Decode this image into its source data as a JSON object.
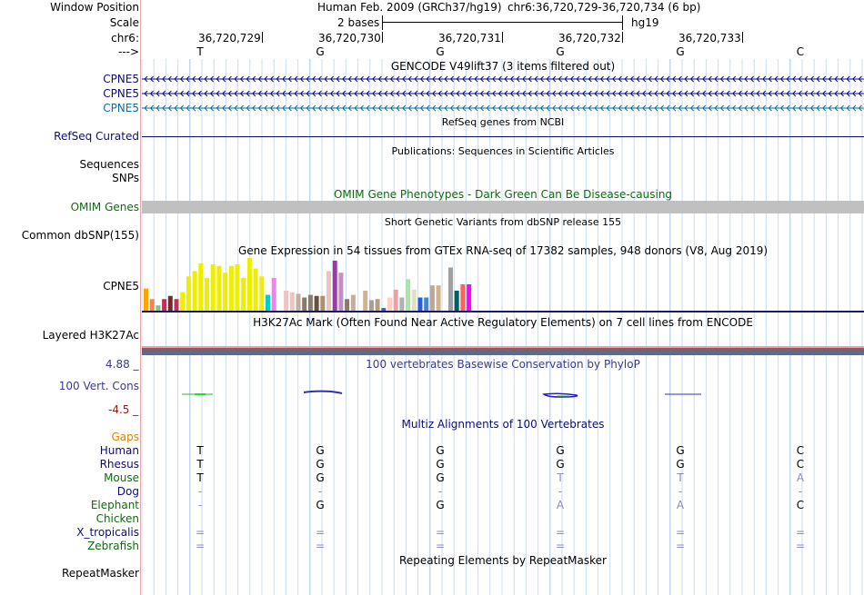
{
  "header": {
    "window_position_label": "Window Position",
    "assembly": "Human Feb. 2009 (GRCh37/hg19)",
    "position": "chr6:36,720,729-36,720,734 (6 bp)",
    "scale_label": "Scale",
    "scale_value": "2 bases",
    "scale_db": "hg19",
    "chrom_label": "chr6:",
    "strand_label": "--->"
  },
  "ruler": [
    "36,720,729",
    "36,720,730",
    "36,720,731",
    "36,720,732",
    "36,720,733"
  ],
  "sequence": [
    "T",
    "G",
    "G",
    "G",
    "G",
    "C"
  ],
  "gencode": {
    "title": "GENCODE V49lift37 (3 items filtered out)",
    "genes": [
      {
        "name": "CPNE5",
        "color": "#0c0c78"
      },
      {
        "name": "CPNE5",
        "color": "#0c0c78"
      },
      {
        "name": "CPNE5",
        "color": "#0c6e9e"
      }
    ]
  },
  "refseq": {
    "title": "RefSeq genes from NCBI",
    "label": "RefSeq Curated",
    "color": "#0c0c78"
  },
  "publications": {
    "title": "Publications: Sequences in Scientific Articles",
    "labels": [
      "Sequences",
      "SNPs"
    ]
  },
  "omim": {
    "title": "OMIM Gene Phenotypes - Dark Green Can Be Disease-causing",
    "label": "OMIM Genes",
    "color": "#0a6e0a"
  },
  "dbsnp": {
    "title": "Short Genetic Variants from dbSNP release 155",
    "label": "Common dbSNP(155)"
  },
  "gtex": {
    "title": "Gene Expression in 54 tissues from GTEx RNA-seq of 17382 samples, 948 donors (V8, Aug 2019)",
    "label": "CPNE5",
    "bars": [
      {
        "v": 0.42,
        "c": "#ffa500"
      },
      {
        "v": 0.22,
        "c": "#ff7f50"
      },
      {
        "v": 0.1,
        "c": "#80c080"
      },
      {
        "v": 0.22,
        "c": "#c0305c"
      },
      {
        "v": 0.28,
        "c": "#6c2c2c"
      },
      {
        "v": 0.22,
        "c": "#c0305c"
      },
      {
        "v": 0.35,
        "c": "#eeee00"
      },
      {
        "v": 0.65,
        "c": "#eeee00"
      },
      {
        "v": 0.75,
        "c": "#eeee00"
      },
      {
        "v": 0.9,
        "c": "#eeee00"
      },
      {
        "v": 0.62,
        "c": "#eeee00"
      },
      {
        "v": 0.88,
        "c": "#eeee00"
      },
      {
        "v": 0.85,
        "c": "#eeee00"
      },
      {
        "v": 0.72,
        "c": "#eeee00"
      },
      {
        "v": 0.85,
        "c": "#eeee00"
      },
      {
        "v": 0.88,
        "c": "#eeee00"
      },
      {
        "v": 0.62,
        "c": "#eeee00"
      },
      {
        "v": 1.0,
        "c": "#eeee00"
      },
      {
        "v": 0.8,
        "c": "#eeee00"
      },
      {
        "v": 0.65,
        "c": "#eeee00"
      },
      {
        "v": 0.3,
        "c": "#00cccc"
      },
      {
        "v": 0.62,
        "c": "#ee82ee"
      },
      {
        "v": 0.0,
        "c": "#ffffff"
      },
      {
        "v": 0.38,
        "c": "#eec4bf"
      },
      {
        "v": 0.35,
        "c": "#eec4bf"
      },
      {
        "v": 0.32,
        "c": "#c4aca0"
      },
      {
        "v": 0.25,
        "c": "#8b7a6a"
      },
      {
        "v": 0.3,
        "c": "#8b7a6a"
      },
      {
        "v": 0.28,
        "c": "#6b5040"
      },
      {
        "v": 0.28,
        "c": "#a89070"
      },
      {
        "v": 0.75,
        "c": "#eec4bf"
      },
      {
        "v": 0.95,
        "c": "#9040a0"
      },
      {
        "v": 0.72,
        "c": "#c090c0"
      },
      {
        "v": 0.22,
        "c": "#8b7a6a"
      },
      {
        "v": 0.3,
        "c": "#c4aca0"
      },
      {
        "v": 0.0,
        "c": "#ffffff"
      },
      {
        "v": 0.38,
        "c": "#d2b48c"
      },
      {
        "v": 0.2,
        "c": "#a0a0a0"
      },
      {
        "v": 0.22,
        "c": "#b0a080"
      },
      {
        "v": 0.05,
        "c": "#4060c0"
      },
      {
        "v": 0.25,
        "c": "#ffd0c0"
      },
      {
        "v": 0.4,
        "c": "#f0a0a0"
      },
      {
        "v": 0.25,
        "c": "#b0b0b0"
      },
      {
        "v": 0.6,
        "c": "#b0e0b0"
      },
      {
        "v": 0.4,
        "c": "#e0e0c0"
      },
      {
        "v": 0.25,
        "c": "#2060e0"
      },
      {
        "v": 0.25,
        "c": "#5080c0"
      },
      {
        "v": 0.48,
        "c": "#c0a890"
      },
      {
        "v": 0.48,
        "c": "#d2b48c"
      },
      {
        "v": 0.0,
        "c": "#ffffff"
      },
      {
        "v": 0.82,
        "c": "#a0a0a0"
      },
      {
        "v": 0.38,
        "c": "#006060"
      },
      {
        "v": 0.5,
        "c": "#ff6060"
      },
      {
        "v": 0.5,
        "c": "#ff00ff"
      }
    ]
  },
  "h3k27ac": {
    "title": "H3K27Ac Mark (Often Found Near Active Regulatory Elements) on 7 cell lines from ENCODE",
    "label": "Layered H3K27Ac"
  },
  "phylop": {
    "title": "100 vertebrates Basewise Conservation by PhyloP",
    "label": "100 Vert. Cons",
    "max": "4.88 _",
    "min": "-4.5 _"
  },
  "multiz": {
    "title": "Multiz Alignments of 100 Vertebrates",
    "gaps_label": "Gaps",
    "species": [
      {
        "name": "Human",
        "color": "#0c0c78",
        "bases": [
          "T",
          "G",
          "G",
          "G",
          "G",
          "C"
        ],
        "faded": [
          false,
          false,
          false,
          false,
          false,
          false
        ]
      },
      {
        "name": "Rhesus",
        "color": "#0c0c78",
        "bases": [
          "T",
          "G",
          "G",
          "G",
          "G",
          "C"
        ],
        "faded": [
          false,
          false,
          false,
          false,
          false,
          false
        ]
      },
      {
        "name": "Mouse",
        "color": "#0a6e0a",
        "bases": [
          "T",
          "G",
          "G",
          "T",
          "T",
          "A"
        ],
        "faded": [
          false,
          false,
          false,
          true,
          true,
          true
        ]
      },
      {
        "name": "Dog",
        "color": "#0c0c78",
        "bases": [
          "-",
          "-",
          "-",
          "-",
          "-",
          "-"
        ],
        "faded": [
          true,
          true,
          true,
          true,
          true,
          true
        ]
      },
      {
        "name": "Elephant",
        "color": "#0a6e0a",
        "bases": [
          "-",
          "G",
          "G",
          "A",
          "A",
          "C"
        ],
        "faded": [
          true,
          false,
          false,
          true,
          true,
          false
        ]
      },
      {
        "name": "Chicken",
        "color": "#0a6e0a",
        "bases": [
          "",
          "",
          "",
          "",
          "",
          ""
        ],
        "faded": [
          false,
          false,
          false,
          false,
          false,
          false
        ]
      },
      {
        "name": "X_tropicalis",
        "color": "#0c0c78",
        "bases": [
          "=",
          "=",
          "=",
          "=",
          "=",
          "="
        ],
        "faded": [
          true,
          true,
          true,
          true,
          true,
          true
        ]
      },
      {
        "name": "Zebrafish",
        "color": "#0a6e0a",
        "bases": [
          "=",
          "=",
          "=",
          "=",
          "=",
          "="
        ],
        "faded": [
          true,
          true,
          true,
          true,
          true,
          true
        ]
      }
    ]
  },
  "repeatmasker": {
    "title": "Repeating Elements by RepeatMasker",
    "label": "RepeatMasker"
  },
  "colors": {
    "grid": "#c8ddf2",
    "base_grid": "#a8c4e6",
    "omim_bar": "#c0c0c0",
    "faded_base": "#8b8bb8"
  }
}
